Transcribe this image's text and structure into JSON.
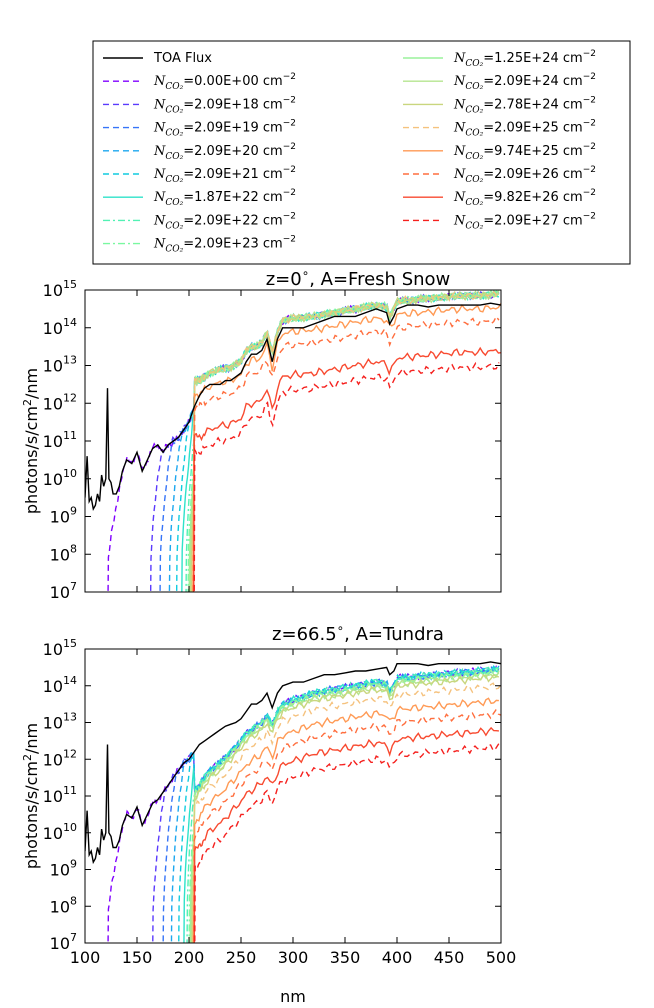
{
  "legend": {
    "entries": [
      {
        "label": "TOA Flux",
        "type": "toa",
        "color": "#000000",
        "dash": "solid"
      },
      {
        "prefix": "N",
        "sub": "CO₂",
        "value": "=0.00E+00 cm",
        "exp": "−2",
        "color": "#8000ff",
        "dash": "dashed"
      },
      {
        "prefix": "N",
        "sub": "CO₂",
        "value": "=2.09E+18 cm",
        "exp": "−2",
        "color": "#5a3afd",
        "dash": "dashed"
      },
      {
        "prefix": "N",
        "sub": "CO₂",
        "value": "=2.09E+19 cm",
        "exp": "−2",
        "color": "#3674f8",
        "dash": "dashed"
      },
      {
        "prefix": "N",
        "sub": "CO₂",
        "value": "=2.09E+20 cm",
        "exp": "−2",
        "color": "#1ca7ef",
        "dash": "dashed"
      },
      {
        "prefix": "N",
        "sub": "CO₂",
        "value": "=2.09E+21 cm",
        "exp": "−2",
        "color": "#10ccdf",
        "dash": "dashed"
      },
      {
        "prefix": "N",
        "sub": "CO₂",
        "value": "=1.87E+22 cm",
        "exp": "−2",
        "color": "#2ee2ca",
        "dash": "solid"
      },
      {
        "prefix": "N",
        "sub": "CO₂",
        "value": "=2.09E+22 cm",
        "exp": "−2",
        "color": "#52f1b4",
        "dash": "dashdot"
      },
      {
        "prefix": "N",
        "sub": "CO₂",
        "value": "=2.09E+23 cm",
        "exp": "−2",
        "color": "#7af8a0",
        "dash": "dashdot"
      },
      {
        "prefix": "N",
        "sub": "CO₂",
        "value": "=1.25E+24 cm",
        "exp": "−2",
        "color": "#9af29b",
        "dash": "solid"
      },
      {
        "prefix": "N",
        "sub": "CO₂",
        "value": "=2.09E+24 cm",
        "exp": "−2",
        "color": "#b4e58f",
        "dash": "solid"
      },
      {
        "prefix": "N",
        "sub": "CO₂",
        "value": "=2.78E+24 cm",
        "exp": "−2",
        "color": "#c9d67e",
        "dash": "solid"
      },
      {
        "prefix": "N",
        "sub": "CO₂",
        "value": "=2.09E+25 cm",
        "exp": "−2",
        "color": "#f5c27e",
        "dash": "dashed"
      },
      {
        "prefix": "N",
        "sub": "CO₂",
        "value": "=9.74E+25 cm",
        "exp": "−2",
        "color": "#ff9a55",
        "dash": "solid"
      },
      {
        "prefix": "N",
        "sub": "CO₂",
        "value": "=2.09E+26 cm",
        "exp": "−2",
        "color": "#ff6e3e",
        "dash": "dashed"
      },
      {
        "prefix": "N",
        "sub": "CO₂",
        "value": "=9.82E+26 cm",
        "exp": "−2",
        "color": "#f84a30",
        "dash": "solid"
      },
      {
        "prefix": "N",
        "sub": "CO₂",
        "value": "=2.09E+27 cm",
        "exp": "−2",
        "color": "#f5201e",
        "dash": "dashed"
      }
    ]
  },
  "chart_data": [
    {
      "type": "line",
      "title": "z=0$^\\circ$, A=Fresh Snow",
      "title_base": "z=0",
      "title_sup": "∘",
      "title_rest": ", A=Fresh Snow",
      "xlabel": "",
      "ylabel": "photons/s/cm²/nm",
      "ylabel_base": "photons/s/cm",
      "ylabel_sup": "2",
      "ylabel_rest": "/nm",
      "xlim": [
        100,
        500
      ],
      "ylim_log10": [
        7,
        15
      ],
      "yscale": "log",
      "xticks": [
        100,
        150,
        200,
        250,
        300,
        350,
        400,
        450,
        500
      ],
      "xtick_labels_shown": false,
      "yticks_exp": [
        7,
        8,
        9,
        10,
        11,
        12,
        13,
        14,
        15
      ],
      "ytick_base": "10",
      "toa_log10": [
        [
          100,
          9.5
        ],
        [
          102,
          10.6
        ],
        [
          104,
          9.4
        ],
        [
          106,
          9.5
        ],
        [
          108,
          9.2
        ],
        [
          110,
          9.3
        ],
        [
          112,
          9.6
        ],
        [
          114,
          9.4
        ],
        [
          116,
          10.1
        ],
        [
          118,
          9.8
        ],
        [
          120,
          10.0
        ],
        [
          121.6,
          12.4
        ],
        [
          123,
          10.0
        ],
        [
          125,
          9.9
        ],
        [
          127,
          9.6
        ],
        [
          130,
          9.6
        ],
        [
          133,
          9.8
        ],
        [
          136,
          10.2
        ],
        [
          140,
          10.5
        ],
        [
          145,
          10.4
        ],
        [
          150,
          10.7
        ],
        [
          155,
          10.2
        ],
        [
          160,
          10.5
        ],
        [
          165,
          10.8
        ],
        [
          170,
          10.9
        ],
        [
          175,
          10.7
        ],
        [
          180,
          10.9
        ],
        [
          185,
          11.0
        ],
        [
          190,
          11.1
        ],
        [
          195,
          11.3
        ],
        [
          200,
          11.5
        ],
        [
          205,
          11.9
        ],
        [
          210,
          12.2
        ],
        [
          215,
          12.4
        ],
        [
          220,
          12.5
        ],
        [
          225,
          12.5
        ],
        [
          230,
          12.5
        ],
        [
          235,
          12.6
        ],
        [
          240,
          12.6
        ],
        [
          245,
          12.7
        ],
        [
          250,
          12.8
        ],
        [
          255,
          13.1
        ],
        [
          260,
          13.3
        ],
        [
          265,
          13.3
        ],
        [
          270,
          13.4
        ],
        [
          275,
          13.7
        ],
        [
          280,
          13.1
        ],
        [
          285,
          13.7
        ],
        [
          290,
          14.0
        ],
        [
          295,
          14.0
        ],
        [
          300,
          14.0
        ],
        [
          310,
          14.0
        ],
        [
          320,
          14.1
        ],
        [
          330,
          14.2
        ],
        [
          340,
          14.3
        ],
        [
          350,
          14.3
        ],
        [
          360,
          14.3
        ],
        [
          370,
          14.4
        ],
        [
          380,
          14.5
        ],
        [
          390,
          14.4
        ],
        [
          393,
          14.1
        ],
        [
          397,
          14.3
        ],
        [
          400,
          14.5
        ],
        [
          410,
          14.6
        ],
        [
          420,
          14.6
        ],
        [
          430,
          14.55
        ],
        [
          440,
          14.6
        ],
        [
          450,
          14.6
        ],
        [
          460,
          14.6
        ],
        [
          470,
          14.6
        ],
        [
          480,
          14.6
        ],
        [
          490,
          14.65
        ],
        [
          500,
          14.6
        ]
      ],
      "surface_base_log10": [
        [
          210,
          12.6
        ],
        [
          220,
          12.8
        ],
        [
          230,
          12.9
        ],
        [
          240,
          12.95
        ],
        [
          250,
          13.1
        ],
        [
          255,
          13.4
        ],
        [
          260,
          13.5
        ],
        [
          265,
          13.5
        ],
        [
          270,
          13.6
        ],
        [
          275,
          13.9
        ],
        [
          280,
          13.3
        ],
        [
          285,
          13.9
        ],
        [
          290,
          14.2
        ],
        [
          300,
          14.25
        ],
        [
          320,
          14.3
        ],
        [
          340,
          14.4
        ],
        [
          360,
          14.5
        ],
        [
          380,
          14.6
        ],
        [
          390,
          14.55
        ],
        [
          393,
          14.3
        ],
        [
          397,
          14.5
        ],
        [
          400,
          14.7
        ],
        [
          420,
          14.75
        ],
        [
          440,
          14.8
        ],
        [
          460,
          14.85
        ],
        [
          480,
          14.85
        ],
        [
          500,
          14.9
        ]
      ],
      "cutoff_nm": [
        122,
        163,
        172,
        181,
        188,
        193,
        197,
        199,
        200,
        201,
        202,
        203,
        203.5,
        204,
        204.5,
        205
      ],
      "longwave_offset_log10": [
        0,
        0,
        0,
        0,
        0,
        0,
        0,
        0,
        0,
        0,
        0,
        0,
        0,
        -0.35,
        -0.7,
        -1.5,
        -1.9
      ]
    },
    {
      "type": "line",
      "title": "z=66.5$^\\circ$, A=Tundra",
      "title_base": "z=66.5",
      "title_sup": "∘",
      "title_rest": ", A=Tundra",
      "xlabel": "nm",
      "ylabel": "photons/s/cm²/nm",
      "ylabel_base": "photons/s/cm",
      "ylabel_sup": "2",
      "ylabel_rest": "/nm",
      "xlim": [
        100,
        500
      ],
      "ylim_log10": [
        7,
        15
      ],
      "yscale": "log",
      "xticks": [
        100,
        150,
        200,
        250,
        300,
        350,
        400,
        450,
        500
      ],
      "xtick_labels_shown": true,
      "yticks_exp": [
        7,
        8,
        9,
        10,
        11,
        12,
        13,
        14,
        15
      ],
      "ytick_base": "10",
      "toa_log10": [
        [
          100,
          9.5
        ],
        [
          102,
          10.6
        ],
        [
          104,
          9.4
        ],
        [
          106,
          9.5
        ],
        [
          108,
          9.2
        ],
        [
          110,
          9.3
        ],
        [
          112,
          9.6
        ],
        [
          114,
          9.4
        ],
        [
          116,
          10.1
        ],
        [
          118,
          9.8
        ],
        [
          120,
          10.0
        ],
        [
          121.6,
          12.4
        ],
        [
          123,
          10.0
        ],
        [
          125,
          9.9
        ],
        [
          127,
          9.6
        ],
        [
          130,
          9.6
        ],
        [
          133,
          9.8
        ],
        [
          136,
          10.2
        ],
        [
          140,
          10.5
        ],
        [
          145,
          10.4
        ],
        [
          150,
          10.7
        ],
        [
          155,
          10.2
        ],
        [
          160,
          10.5
        ],
        [
          165,
          10.8
        ],
        [
          170,
          10.9
        ],
        [
          175,
          11.1
        ],
        [
          180,
          11.3
        ],
        [
          185,
          11.5
        ],
        [
          190,
          11.7
        ],
        [
          195,
          11.9
        ],
        [
          200,
          12.0
        ],
        [
          205,
          12.2
        ],
        [
          210,
          12.4
        ],
        [
          215,
          12.5
        ],
        [
          220,
          12.6
        ],
        [
          225,
          12.7
        ],
        [
          230,
          12.8
        ],
        [
          235,
          12.9
        ],
        [
          240,
          12.95
        ],
        [
          245,
          13.0
        ],
        [
          250,
          13.1
        ],
        [
          255,
          13.3
        ],
        [
          260,
          13.5
        ],
        [
          265,
          13.5
        ],
        [
          270,
          13.6
        ],
        [
          275,
          13.8
        ],
        [
          280,
          13.4
        ],
        [
          285,
          13.8
        ],
        [
          290,
          14.0
        ],
        [
          300,
          14.1
        ],
        [
          310,
          14.1
        ],
        [
          320,
          14.2
        ],
        [
          330,
          14.3
        ],
        [
          340,
          14.3
        ],
        [
          350,
          14.35
        ],
        [
          360,
          14.4
        ],
        [
          370,
          14.4
        ],
        [
          380,
          14.45
        ],
        [
          390,
          14.5
        ],
        [
          393,
          14.3
        ],
        [
          397,
          14.4
        ],
        [
          400,
          14.6
        ],
        [
          410,
          14.6
        ],
        [
          420,
          14.6
        ],
        [
          430,
          14.55
        ],
        [
          440,
          14.6
        ],
        [
          450,
          14.6
        ],
        [
          460,
          14.6
        ],
        [
          470,
          14.6
        ],
        [
          480,
          14.6
        ],
        [
          490,
          14.65
        ],
        [
          500,
          14.6
        ]
      ],
      "surface_base_log10": [
        [
          200,
          10.9
        ],
        [
          210,
          11.3
        ],
        [
          220,
          11.7
        ],
        [
          230,
          11.9
        ],
        [
          240,
          12.2
        ],
        [
          250,
          12.5
        ],
        [
          255,
          12.7
        ],
        [
          260,
          12.8
        ],
        [
          265,
          12.9
        ],
        [
          270,
          13.0
        ],
        [
          275,
          13.2
        ],
        [
          280,
          12.9
        ],
        [
          285,
          13.3
        ],
        [
          290,
          13.5
        ],
        [
          300,
          13.6
        ],
        [
          320,
          13.8
        ],
        [
          340,
          13.9
        ],
        [
          360,
          14.0
        ],
        [
          380,
          14.1
        ],
        [
          390,
          14.05
        ],
        [
          393,
          13.85
        ],
        [
          397,
          14.0
        ],
        [
          400,
          14.2
        ],
        [
          420,
          14.25
        ],
        [
          440,
          14.3
        ],
        [
          460,
          14.35
        ],
        [
          480,
          14.4
        ],
        [
          500,
          14.45
        ]
      ],
      "cutoff_nm": [
        122,
        165,
        175,
        183,
        190,
        195,
        198,
        200,
        201,
        202,
        203,
        203.5,
        204,
        204.5,
        205,
        205.5
      ],
      "longwave_offset_log10": [
        0,
        0,
        0,
        0,
        0,
        0,
        0,
        0,
        -0.05,
        -0.1,
        -0.15,
        -0.2,
        -0.45,
        -0.85,
        -1.2,
        -1.65,
        -2.1
      ]
    }
  ]
}
